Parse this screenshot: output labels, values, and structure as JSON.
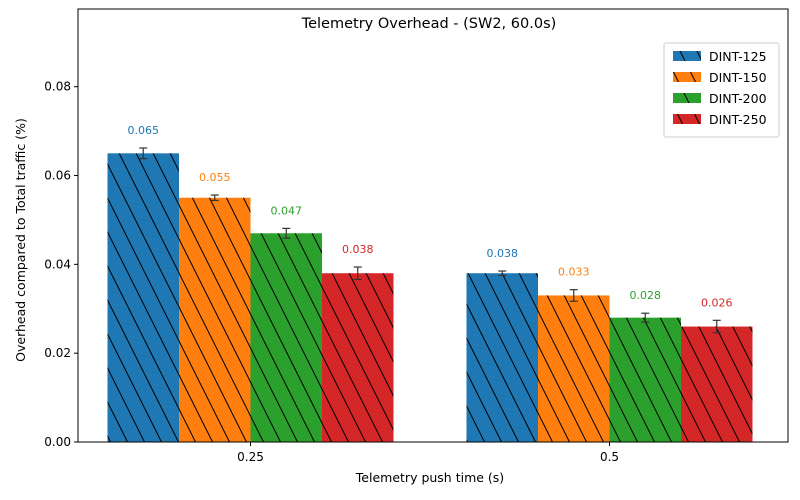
{
  "chart_data": {
    "type": "bar",
    "title": "Telemetry Overhead - (SW2, 60.0s)",
    "xlabel": "Telemetry push time (s)",
    "ylabel": "Overhead compared to Total traffic (%)",
    "categories": [
      "0.25",
      "0.5"
    ],
    "series": [
      {
        "name": "DINT-125",
        "color": "#1f77b4",
        "values": [
          0.065,
          0.038
        ],
        "errors": [
          0.0012,
          0.0005
        ],
        "labels": [
          "0.065",
          "0.038"
        ]
      },
      {
        "name": "DINT-150",
        "color": "#ff7f0e",
        "values": [
          0.055,
          0.033
        ],
        "errors": [
          0.0006,
          0.0013
        ],
        "labels": [
          "0.055",
          "0.033"
        ]
      },
      {
        "name": "DINT-200",
        "color": "#2ca02c",
        "values": [
          0.047,
          0.028
        ],
        "errors": [
          0.0011,
          0.001
        ],
        "labels": [
          "0.047",
          "0.028"
        ]
      },
      {
        "name": "DINT-250",
        "color": "#d62728",
        "values": [
          0.038,
          0.026
        ],
        "errors": [
          0.0014,
          0.0014
        ],
        "labels": [
          "0.038",
          "0.026"
        ]
      }
    ],
    "ylim": [
      0,
      0.0975
    ],
    "yticks": [
      "0.00",
      "0.02",
      "0.04",
      "0.06",
      "0.08"
    ],
    "hatch": "backslash",
    "grid": false,
    "legend_position": "top-right"
  }
}
